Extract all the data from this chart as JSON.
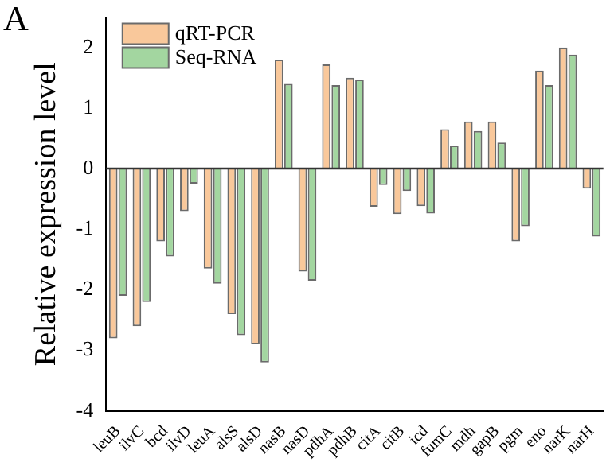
{
  "chart_data": {
    "type": "bar",
    "title": "A",
    "ylabel": "Relative expression level",
    "categories": [
      "leuB",
      "ilvC",
      "bcd",
      "ilvD",
      "leuA",
      "alsS",
      "alsD",
      "nasB",
      "nasD",
      "pdhA",
      "pdhB",
      "citA",
      "citB",
      "icd",
      "fumC",
      "mdh",
      "gapB",
      "pgm",
      "eno",
      "narK",
      "narH"
    ],
    "series": [
      {
        "name": "qRT-PCR",
        "color": "#f9c89b",
        "values": [
          -2.8,
          -2.6,
          -1.2,
          -0.7,
          -1.65,
          -2.4,
          -2.9,
          1.8,
          -1.7,
          1.72,
          1.5,
          -0.63,
          -0.75,
          -0.62,
          0.65,
          0.78,
          0.78,
          -1.2,
          1.62,
          2.0,
          -0.33
        ]
      },
      {
        "name": "Seq-RNA",
        "color": "#a3d6a0",
        "values": [
          -2.1,
          -2.2,
          -1.45,
          -0.25,
          -1.9,
          -2.75,
          -3.2,
          1.4,
          -1.85,
          1.38,
          1.47,
          -0.27,
          -0.37,
          -0.74,
          0.38,
          0.62,
          0.43,
          -0.95,
          1.38,
          1.88,
          -1.12
        ]
      }
    ],
    "ylim": [
      -4,
      2.5
    ],
    "yticks": [
      -4,
      -3,
      -2,
      -1,
      0,
      1,
      2
    ],
    "ref_lines": [
      {
        "axis": "y",
        "value": 0,
        "color": "#333333"
      }
    ],
    "grid": false,
    "legend": "top left"
  }
}
